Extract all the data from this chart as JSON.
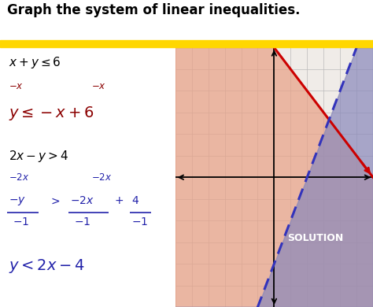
{
  "title": "Graph the system of linear inequalities.",
  "title_fontsize": 12,
  "title_fontweight": "bold",
  "title_color": "#000000",
  "yellow_bar_color": "#FFD700",
  "bg_color": "#ffffff",
  "graph_xlim": [
    -6,
    6
  ],
  "graph_ylim": [
    -6,
    6
  ],
  "line1_color": "#cc0000",
  "line2_color": "#3333bb",
  "shade1_color": "#e8a085",
  "shade2_color": "#8888bb",
  "grid_color": "#bbbbbb",
  "grid_bg": "#f0ece8",
  "solution_text": "SOLUTION",
  "solution_text_color": "#ffffff",
  "dark_red": "#8B0000",
  "blue": "#2222aa",
  "black": "#000000"
}
